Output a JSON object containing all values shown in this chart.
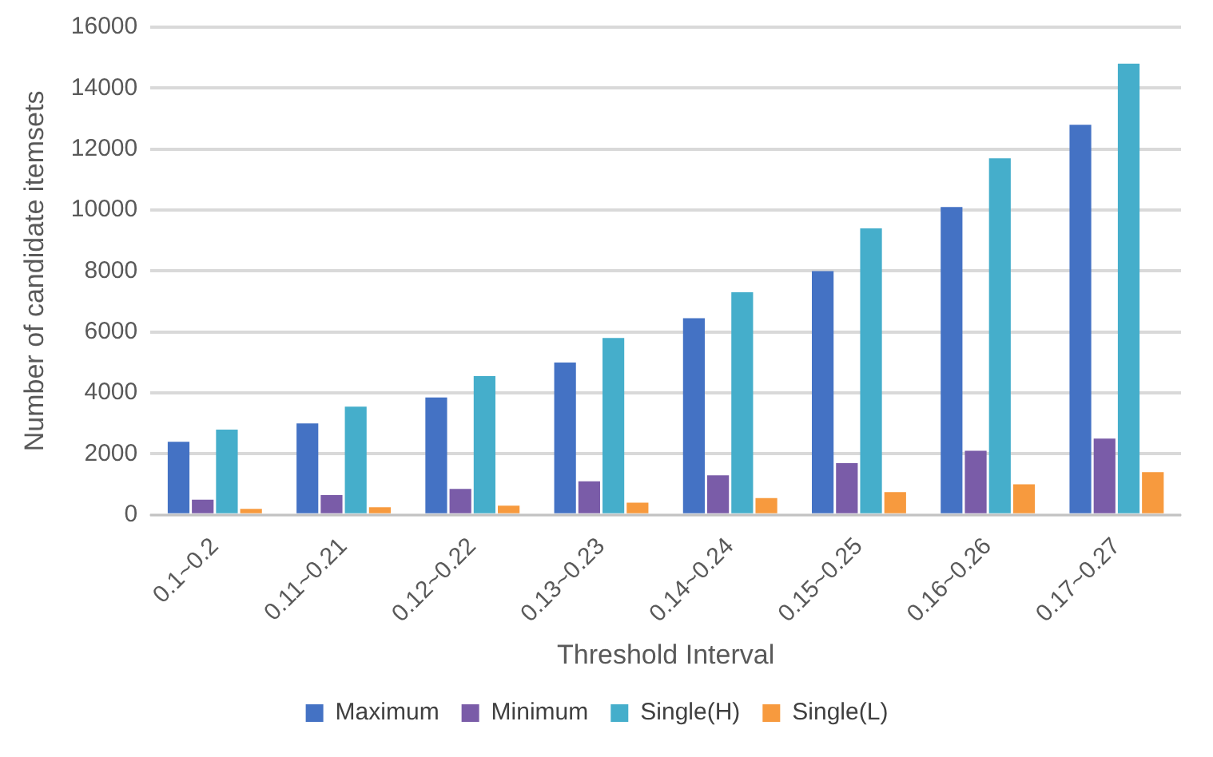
{
  "chart_data": {
    "type": "bar",
    "xlabel": "Threshold Interval",
    "ylabel": "Number of candidate itemsets",
    "categories": [
      "0.1~0.2",
      "0.11~0.21",
      "0.12~0.22",
      "0.13~0.23",
      "0.14~0.24",
      "0.15~0.25",
      "0.16~0.26",
      "0.17~0.27"
    ],
    "series": [
      {
        "name": "Maximum",
        "color": "#4472c4",
        "values": [
          2400,
          3000,
          3850,
          5000,
          6450,
          8000,
          10100,
          12800
        ]
      },
      {
        "name": "Minimum",
        "color": "#7a5ca8",
        "values": [
          500,
          650,
          850,
          1100,
          1300,
          1700,
          2100,
          2500
        ]
      },
      {
        "name": "Single(H)",
        "color": "#45aecb",
        "values": [
          2800,
          3550,
          4550,
          5800,
          7300,
          9400,
          11700,
          14800
        ]
      },
      {
        "name": "Single(L)",
        "color": "#f79a3e",
        "values": [
          200,
          250,
          300,
          400,
          550,
          750,
          1000,
          1400
        ]
      }
    ],
    "ylim": [
      0,
      16000
    ],
    "yticks": [
      0,
      2000,
      4000,
      6000,
      8000,
      10000,
      12000,
      14000,
      16000
    ],
    "grid": "y",
    "legend": "bottom"
  }
}
